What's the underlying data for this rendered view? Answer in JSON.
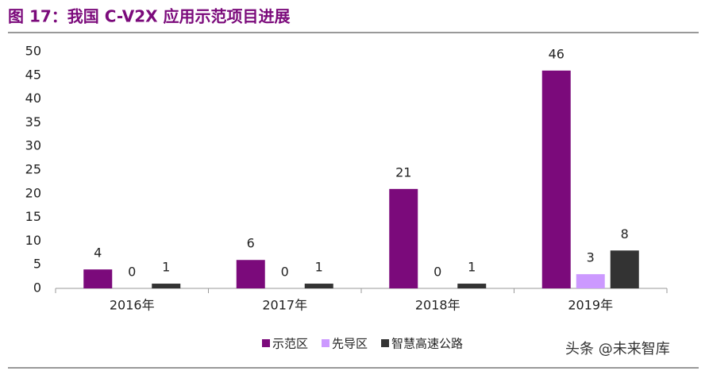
{
  "chart_data": {
    "type": "bar",
    "title": "图 17：我国 C-V2X 应用示范项目进展",
    "categories": [
      "2016年",
      "2017年",
      "2018年",
      "2019年"
    ],
    "series": [
      {
        "name": "示范区",
        "color": "#7b0a7b",
        "values": [
          4,
          6,
          21,
          46
        ]
      },
      {
        "name": "先导区",
        "color": "#cc99ff",
        "values": [
          0,
          0,
          0,
          3
        ]
      },
      {
        "name": "智慧高速公路",
        "color": "#333333",
        "values": [
          1,
          1,
          1,
          8
        ]
      }
    ],
    "ylim": [
      0,
      50
    ],
    "yticks": [
      0,
      5,
      10,
      15,
      20,
      25,
      30,
      35,
      40,
      45,
      50
    ],
    "watermark": "头条 @未来智库"
  }
}
